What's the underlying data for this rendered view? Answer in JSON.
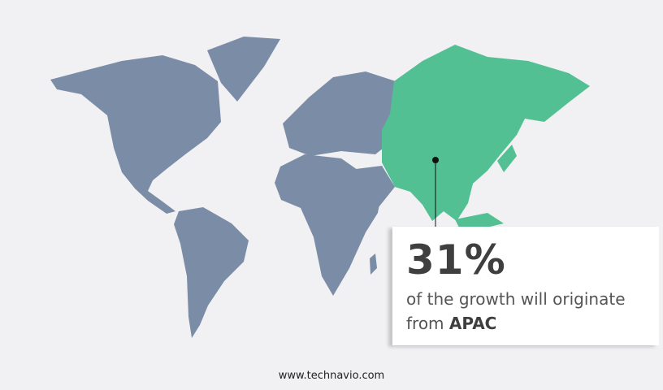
{
  "colors": {
    "background": "#f1f1f3",
    "land": "#7a8ca6",
    "highlight": "#52c093"
  },
  "highlight_region": "APAC",
  "callout": {
    "percent": "31%",
    "text": "of the growth will originate",
    "text2": "from",
    "region": "APAC"
  },
  "footer": {
    "url": "www.technavio.com"
  }
}
